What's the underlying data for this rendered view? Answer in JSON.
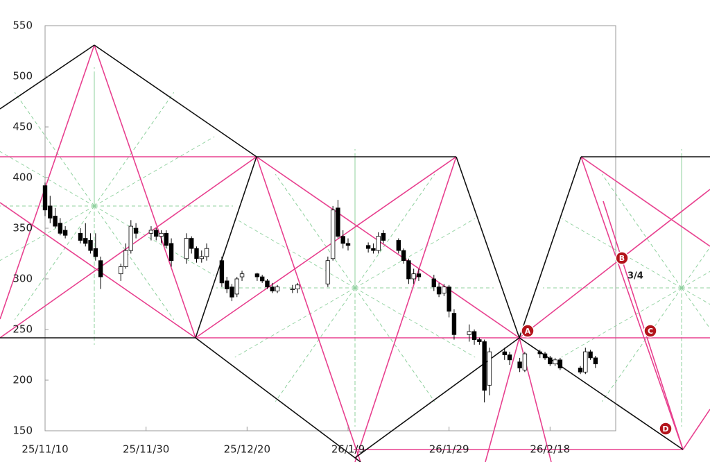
{
  "chart_data": {
    "type": "candlestick",
    "x": [
      "25/11/10",
      "25/11/11",
      "25/11/12",
      "25/11/13",
      "25/11/14",
      "25/11/17",
      "25/11/18",
      "25/11/19",
      "25/11/20",
      "25/11/21",
      "25/11/25",
      "25/11/26",
      "25/11/27",
      "25/11/28",
      "25/12/1",
      "25/12/2",
      "25/12/3",
      "25/12/4",
      "25/12/5",
      "25/12/8",
      "25/12/9",
      "25/12/10",
      "25/12/11",
      "25/12/12",
      "25/12/15",
      "25/12/16",
      "25/12/17",
      "25/12/18",
      "25/12/19",
      "25/12/22",
      "25/12/23",
      "25/12/24",
      "25/12/25",
      "25/12/26",
      "25/12/29",
      "25/12/30",
      "26/1/5",
      "26/1/6",
      "26/1/7",
      "26/1/8",
      "26/1/9",
      "26/1/13",
      "26/1/14",
      "26/1/15",
      "26/1/16",
      "26/1/19",
      "26/1/20",
      "26/1/21",
      "26/1/22",
      "26/1/23",
      "26/1/26",
      "26/1/27",
      "26/1/28",
      "26/1/29",
      "26/1/30",
      "26/2/2",
      "26/2/3",
      "26/2/4",
      "26/2/5",
      "26/2/6",
      "26/2/9",
      "26/2/10",
      "26/2/12",
      "26/2/13",
      "26/2/16",
      "26/2/17",
      "26/2/18",
      "26/2/19",
      "26/2/20",
      "26/2/24",
      "26/2/25",
      "26/2/26",
      "26/2/27"
    ],
    "open": [
      392,
      372,
      362,
      355,
      348,
      345,
      340,
      338,
      330,
      318,
      305,
      312,
      328,
      350,
      345,
      348,
      342,
      345,
      335,
      320,
      340,
      330,
      320,
      322,
      318,
      298,
      292,
      285,
      302,
      305,
      302,
      298,
      292,
      288,
      290,
      290,
      295,
      320,
      370,
      342,
      335,
      333,
      330,
      328,
      345,
      338,
      328,
      318,
      300,
      305,
      300,
      292,
      286,
      292,
      266,
      245,
      248,
      240,
      238,
      195,
      228,
      225,
      218,
      210,
      228,
      226,
      222,
      216,
      220,
      212,
      208,
      228,
      222
    ],
    "high": [
      395,
      382,
      370,
      360,
      352,
      350,
      355,
      345,
      345,
      322,
      315,
      335,
      358,
      355,
      352,
      350,
      348,
      348,
      340,
      345,
      342,
      332,
      328,
      335,
      322,
      302,
      295,
      302,
      308,
      306,
      304,
      300,
      296,
      294,
      294,
      296,
      322,
      372,
      378,
      348,
      340,
      336,
      335,
      346,
      348,
      340,
      330,
      320,
      310,
      310,
      304,
      296,
      295,
      294,
      270,
      255,
      250,
      242,
      240,
      232,
      232,
      228,
      222,
      228,
      230,
      228,
      224,
      222,
      222,
      214,
      232,
      230,
      224
    ],
    "low": [
      362,
      355,
      350,
      343,
      340,
      335,
      332,
      325,
      318,
      290,
      298,
      310,
      325,
      340,
      338,
      338,
      335,
      330,
      312,
      315,
      325,
      316,
      316,
      318,
      292,
      286,
      278,
      282,
      298,
      298,
      296,
      290,
      286,
      286,
      286,
      286,
      292,
      318,
      340,
      330,
      328,
      326,
      325,
      325,
      335,
      325,
      315,
      295,
      295,
      298,
      288,
      282,
      283,
      262,
      240,
      238,
      235,
      235,
      178,
      185,
      220,
      215,
      208,
      208,
      222,
      220,
      214,
      214,
      210,
      206,
      206,
      220,
      212
    ],
    "close": [
      368,
      360,
      352,
      345,
      343,
      338,
      335,
      328,
      322,
      302,
      312,
      328,
      352,
      345,
      348,
      342,
      345,
      333,
      318,
      340,
      330,
      320,
      322,
      330,
      296,
      290,
      282,
      300,
      305,
      302,
      298,
      292,
      288,
      292,
      290,
      294,
      318,
      368,
      342,
      335,
      333,
      330,
      328,
      342,
      338,
      328,
      318,
      300,
      305,
      302,
      292,
      285,
      292,
      268,
      245,
      248,
      240,
      238,
      190,
      228,
      225,
      220,
      212,
      226,
      226,
      222,
      216,
      220,
      212,
      208,
      228,
      222,
      216
    ],
    "up_color": "#ffffff",
    "down_color": "#000000",
    "xlim": [
      "25/11/10",
      "26/3/3"
    ],
    "xticks": [
      "25/11/10",
      "25/11/30",
      "25/12/20",
      "26/1/9",
      "26/1/29",
      "26/2/18"
    ],
    "ylim": [
      150,
      550
    ],
    "yticks": [
      150,
      200,
      250,
      300,
      350,
      400,
      450,
      500,
      550
    ],
    "annotations": [
      "A",
      "B",
      "C",
      "D",
      "3/4"
    ]
  }
}
